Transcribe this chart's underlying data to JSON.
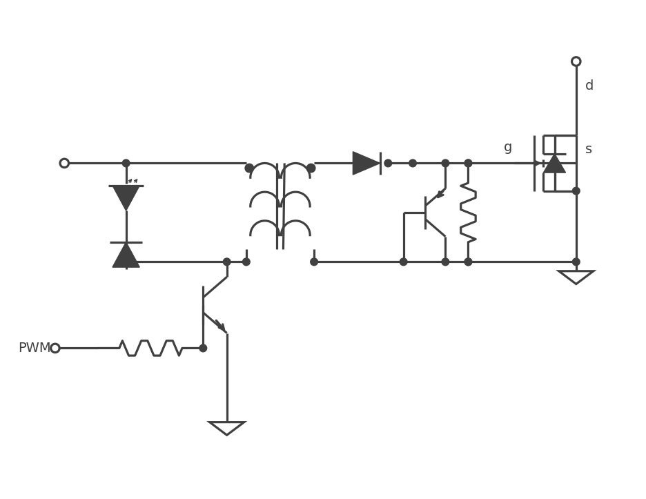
{
  "bg_color": "#ffffff",
  "line_color": "#404040",
  "lw": 2.3,
  "figsize": [
    9.37,
    7.23
  ],
  "dpi": 100,
  "labels": {
    "pwm": "PWM",
    "g": "g",
    "d": "d",
    "s": "s"
  },
  "font_size": 14,
  "xlim": [
    0,
    100
  ],
  "ylim": [
    0,
    80
  ]
}
